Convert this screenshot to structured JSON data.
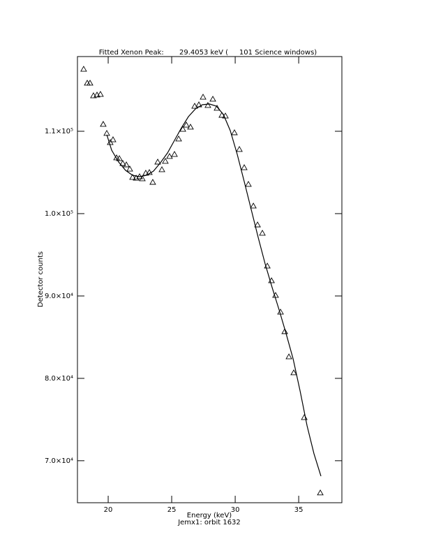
{
  "chart_data": {
    "type": "scatter",
    "title": "Fitted Xenon Peak:       29.4053 keV (     101 Science windows)",
    "x_label": "Energy (keV)",
    "subtitle": "Jemx1: orbit 1632",
    "y_label": "Detector counts",
    "color": "#000000",
    "xlim": [
      17.58,
      38.4
    ],
    "ylim": [
      64900,
      119070
    ],
    "xticks": [
      20,
      25,
      30,
      35
    ],
    "yticks": [
      {
        "value": 70000,
        "label": "7.0×10⁴"
      },
      {
        "value": 80000,
        "label": "8.0×10⁴"
      },
      {
        "value": 90000,
        "label": "9.0×10⁴"
      },
      {
        "value": 100000,
        "label": "1.0×10⁵"
      },
      {
        "value": 110000,
        "label": "1.1×10⁵"
      }
    ],
    "points": {
      "x": [
        18.07,
        18.35,
        18.57,
        18.84,
        19.12,
        19.39,
        19.61,
        19.89,
        20.16,
        20.38,
        20.66,
        20.88,
        21.15,
        21.43,
        21.7,
        21.92,
        22.2,
        22.47,
        22.69,
        22.96,
        23.24,
        23.51,
        23.9,
        24.23,
        24.5,
        24.83,
        25.22,
        25.55,
        25.88,
        26.15,
        26.48,
        26.81,
        27.14,
        27.47,
        27.85,
        28.24,
        28.57,
        28.95,
        29.23,
        29.94,
        30.33,
        30.71,
        31.04,
        31.43,
        31.76,
        32.14,
        32.53,
        32.86,
        33.18,
        33.57,
        33.9,
        34.23,
        34.61,
        35.44,
        36.7
      ],
      "y": [
        117540,
        115850,
        115850,
        114320,
        114410,
        114490,
        110850,
        109750,
        108640,
        108980,
        106780,
        106690,
        106100,
        105930,
        105420,
        104410,
        104320,
        104490,
        104240,
        104920,
        105000,
        103810,
        106270,
        105340,
        106360,
        106950,
        107200,
        109070,
        110250,
        110760,
        110510,
        113050,
        113220,
        114150,
        113140,
        113900,
        112800,
        111950,
        111860,
        109830,
        107800,
        105590,
        103560,
        100930,
        98640,
        97630,
        93640,
        91860,
        90080,
        88050,
        85680,
        82620,
        80680,
        75250,
        66100
      ]
    },
    "fit": {
      "x": [
        19.89,
        20.27,
        20.82,
        21.37,
        21.92,
        22.47,
        23.02,
        23.57,
        24.12,
        24.67,
        25.22,
        25.77,
        26.32,
        26.87,
        27.42,
        27.97,
        28.52,
        29.07,
        29.61,
        30.16,
        30.71,
        31.26,
        31.81,
        32.36,
        32.91,
        33.46,
        34.01,
        34.56,
        35.11,
        35.66,
        36.2,
        36.75
      ],
      "y": [
        109580,
        107710,
        106270,
        105250,
        104660,
        104490,
        104660,
        105170,
        106190,
        107370,
        108900,
        110420,
        111780,
        112710,
        113220,
        113310,
        113050,
        112030,
        110080,
        107200,
        103900,
        100510,
        97120,
        93900,
        91020,
        88300,
        85420,
        82370,
        78470,
        74240,
        70850,
        68130
      ]
    }
  }
}
